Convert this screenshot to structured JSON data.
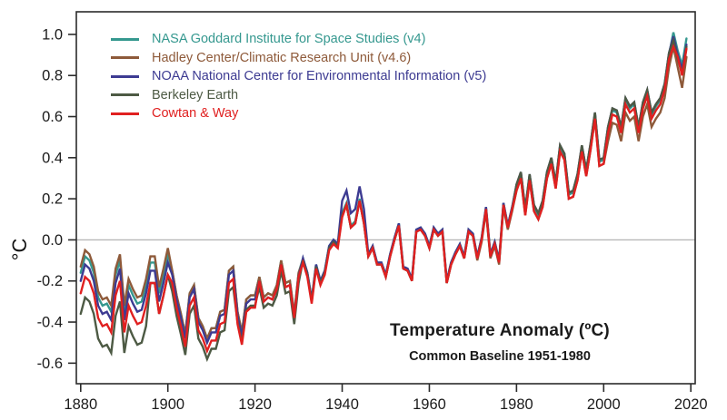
{
  "chart_data": {
    "type": "line",
    "title": "Temperature Anomaly (ºC)",
    "subtitle": "Common Baseline 1951-1980",
    "ylabel": "°C",
    "xlabel": "",
    "x_start_year": 1880,
    "x_end_year": 2019,
    "xlim": [
      1879,
      2021
    ],
    "ylim": [
      -0.7,
      1.11
    ],
    "xticks": [
      1880,
      1900,
      1920,
      1940,
      1960,
      1980,
      2000,
      2020
    ],
    "yticks": [
      -0.6,
      -0.4,
      -0.2,
      0.0,
      0.2,
      0.4,
      0.6,
      0.8,
      1.0
    ],
    "grid": false,
    "zero_line": true,
    "zero_line_color": "#b8b8b8",
    "frame_color": "#2b2b2b",
    "legend_position": "top-left",
    "series": [
      {
        "key": "nasa",
        "name": "NASA Goddard Institute for Space Studies (v4)",
        "color": "#35988f",
        "values": [
          -0.16,
          -0.08,
          -0.1,
          -0.16,
          -0.28,
          -0.32,
          -0.31,
          -0.35,
          -0.17,
          -0.1,
          -0.35,
          -0.22,
          -0.27,
          -0.31,
          -0.3,
          -0.22,
          -0.11,
          -0.11,
          -0.26,
          -0.17,
          -0.07,
          -0.15,
          -0.27,
          -0.36,
          -0.46,
          -0.26,
          -0.22,
          -0.38,
          -0.42,
          -0.48,
          -0.43,
          -0.43,
          -0.35,
          -0.34,
          -0.15,
          -0.13,
          -0.35,
          -0.45,
          -0.29,
          -0.27,
          -0.27,
          -0.18,
          -0.28,
          -0.26,
          -0.27,
          -0.22,
          -0.1,
          -0.21,
          -0.2,
          -0.36,
          -0.16,
          -0.09,
          -0.16,
          -0.29,
          -0.12,
          -0.2,
          -0.15,
          -0.03,
          0.0,
          -0.02,
          0.13,
          0.18,
          0.07,
          0.09,
          0.2,
          0.09,
          -0.07,
          -0.03,
          -0.11,
          -0.11,
          -0.17,
          -0.07,
          0.01,
          0.08,
          -0.13,
          -0.14,
          -0.19,
          0.05,
          0.06,
          0.03,
          -0.03,
          0.06,
          0.03,
          0.05,
          -0.2,
          -0.11,
          -0.06,
          -0.02,
          -0.08,
          0.05,
          0.03,
          -0.08,
          0.01,
          0.16,
          -0.07,
          -0.01,
          -0.1,
          0.18,
          0.07,
          0.16,
          0.26,
          0.32,
          0.14,
          0.31,
          0.16,
          0.12,
          0.18,
          0.32,
          0.39,
          0.27,
          0.45,
          0.41,
          0.22,
          0.23,
          0.31,
          0.45,
          0.33,
          0.46,
          0.61,
          0.38,
          0.39,
          0.54,
          0.63,
          0.62,
          0.54,
          0.68,
          0.64,
          0.66,
          0.54,
          0.66,
          0.72,
          0.61,
          0.65,
          0.68,
          0.75,
          0.9,
          1.01,
          0.92,
          0.85,
          0.98
        ]
      },
      {
        "key": "hadley",
        "name": "Hadley Center/Climatic Research Unit (v4.6)",
        "color": "#8e5a3a",
        "values": [
          -0.13,
          -0.05,
          -0.07,
          -0.13,
          -0.25,
          -0.29,
          -0.28,
          -0.32,
          -0.14,
          -0.07,
          -0.32,
          -0.19,
          -0.24,
          -0.28,
          -0.27,
          -0.19,
          -0.08,
          -0.08,
          -0.23,
          -0.14,
          -0.04,
          -0.15,
          -0.27,
          -0.36,
          -0.46,
          -0.26,
          -0.22,
          -0.38,
          -0.42,
          -0.48,
          -0.43,
          -0.43,
          -0.35,
          -0.34,
          -0.15,
          -0.13,
          -0.35,
          -0.45,
          -0.29,
          -0.27,
          -0.27,
          -0.18,
          -0.28,
          -0.26,
          -0.27,
          -0.22,
          -0.1,
          -0.21,
          -0.2,
          -0.36,
          -0.16,
          -0.1,
          -0.17,
          -0.3,
          -0.13,
          -0.21,
          -0.16,
          -0.04,
          -0.01,
          -0.03,
          0.12,
          0.17,
          0.06,
          0.08,
          0.19,
          0.08,
          -0.08,
          -0.04,
          -0.12,
          -0.12,
          -0.18,
          -0.08,
          0.0,
          0.07,
          -0.14,
          -0.15,
          -0.2,
          0.04,
          0.05,
          0.02,
          -0.04,
          0.05,
          0.02,
          0.04,
          -0.21,
          -0.12,
          -0.07,
          -0.03,
          -0.09,
          0.04,
          0.02,
          -0.1,
          -0.01,
          0.14,
          -0.09,
          -0.03,
          -0.12,
          0.16,
          0.05,
          0.14,
          0.24,
          0.3,
          0.12,
          0.29,
          0.14,
          0.1,
          0.16,
          0.3,
          0.37,
          0.25,
          0.43,
          0.39,
          0.2,
          0.21,
          0.29,
          0.43,
          0.31,
          0.44,
          0.59,
          0.36,
          0.37,
          0.48,
          0.57,
          0.56,
          0.48,
          0.62,
          0.58,
          0.6,
          0.48,
          0.6,
          0.66,
          0.55,
          0.59,
          0.62,
          0.69,
          0.84,
          0.94,
          0.84,
          0.74,
          0.89
        ]
      },
      {
        "key": "noaa",
        "name": "NOAA National Center for Environmental Information (v5)",
        "color": "#3d3b92",
        "values": [
          -0.2,
          -0.12,
          -0.14,
          -0.2,
          -0.32,
          -0.36,
          -0.35,
          -0.39,
          -0.21,
          -0.14,
          -0.39,
          -0.26,
          -0.31,
          -0.35,
          -0.34,
          -0.26,
          -0.15,
          -0.15,
          -0.3,
          -0.21,
          -0.11,
          -0.17,
          -0.29,
          -0.38,
          -0.48,
          -0.28,
          -0.24,
          -0.4,
          -0.44,
          -0.5,
          -0.45,
          -0.45,
          -0.37,
          -0.36,
          -0.17,
          -0.15,
          -0.37,
          -0.47,
          -0.31,
          -0.29,
          -0.29,
          -0.2,
          -0.3,
          -0.28,
          -0.29,
          -0.24,
          -0.12,
          -0.23,
          -0.22,
          -0.38,
          -0.18,
          -0.09,
          -0.16,
          -0.29,
          -0.12,
          -0.2,
          -0.15,
          -0.03,
          0.0,
          -0.02,
          0.19,
          0.24,
          0.13,
          0.15,
          0.26,
          0.15,
          -0.07,
          -0.03,
          -0.11,
          -0.11,
          -0.17,
          -0.07,
          0.01,
          0.08,
          -0.13,
          -0.14,
          -0.19,
          0.05,
          0.06,
          0.03,
          -0.03,
          0.06,
          0.03,
          0.05,
          -0.2,
          -0.11,
          -0.06,
          -0.02,
          -0.08,
          0.05,
          0.03,
          -0.08,
          0.01,
          0.16,
          -0.07,
          -0.01,
          -0.1,
          0.18,
          0.07,
          0.16,
          0.27,
          0.33,
          0.15,
          0.32,
          0.17,
          0.13,
          0.19,
          0.33,
          0.4,
          0.28,
          0.46,
          0.42,
          0.23,
          0.24,
          0.32,
          0.46,
          0.34,
          0.47,
          0.62,
          0.39,
          0.4,
          0.55,
          0.64,
          0.63,
          0.55,
          0.69,
          0.65,
          0.67,
          0.55,
          0.67,
          0.73,
          0.62,
          0.66,
          0.69,
          0.76,
          0.91,
          0.99,
          0.9,
          0.83,
          0.95
        ]
      },
      {
        "key": "berkeley",
        "name": "Berkeley Earth",
        "color": "#4d5a44",
        "values": [
          -0.36,
          -0.28,
          -0.3,
          -0.36,
          -0.48,
          -0.52,
          -0.51,
          -0.55,
          -0.37,
          -0.3,
          -0.55,
          -0.42,
          -0.47,
          -0.51,
          -0.5,
          -0.42,
          -0.21,
          -0.21,
          -0.36,
          -0.27,
          -0.17,
          -0.25,
          -0.37,
          -0.46,
          -0.56,
          -0.36,
          -0.32,
          -0.48,
          -0.52,
          -0.58,
          -0.53,
          -0.53,
          -0.45,
          -0.44,
          -0.25,
          -0.23,
          -0.4,
          -0.5,
          -0.34,
          -0.32,
          -0.32,
          -0.23,
          -0.33,
          -0.31,
          -0.32,
          -0.27,
          -0.15,
          -0.26,
          -0.25,
          -0.41,
          -0.21,
          -0.1,
          -0.17,
          -0.3,
          -0.13,
          -0.21,
          -0.16,
          -0.04,
          -0.01,
          -0.03,
          0.12,
          0.17,
          0.06,
          0.08,
          0.19,
          0.08,
          -0.08,
          -0.04,
          -0.12,
          -0.12,
          -0.18,
          -0.08,
          0.0,
          0.07,
          -0.14,
          -0.15,
          -0.2,
          0.04,
          0.05,
          0.02,
          -0.04,
          0.05,
          0.02,
          0.04,
          -0.21,
          -0.12,
          -0.07,
          -0.03,
          -0.09,
          0.04,
          0.02,
          -0.09,
          0.0,
          0.15,
          -0.08,
          -0.02,
          -0.11,
          0.17,
          0.06,
          0.15,
          0.27,
          0.33,
          0.15,
          0.32,
          0.17,
          0.13,
          0.19,
          0.33,
          0.4,
          0.28,
          0.46,
          0.42,
          0.23,
          0.24,
          0.32,
          0.46,
          0.34,
          0.47,
          0.62,
          0.39,
          0.4,
          0.55,
          0.64,
          0.63,
          0.55,
          0.69,
          0.65,
          0.67,
          0.55,
          0.67,
          0.73,
          0.62,
          0.66,
          0.69,
          0.76,
          0.91,
          0.97,
          0.88,
          0.81,
          0.94
        ]
      },
      {
        "key": "cowtan",
        "name": "Cowtan & Way",
        "color": "#e02020",
        "values": [
          -0.26,
          -0.18,
          -0.2,
          -0.26,
          -0.38,
          -0.42,
          -0.41,
          -0.45,
          -0.27,
          -0.2,
          -0.45,
          -0.32,
          -0.37,
          -0.41,
          -0.4,
          -0.32,
          -0.21,
          -0.21,
          -0.36,
          -0.27,
          -0.17,
          -0.21,
          -0.33,
          -0.42,
          -0.52,
          -0.32,
          -0.28,
          -0.44,
          -0.48,
          -0.54,
          -0.49,
          -0.49,
          -0.41,
          -0.4,
          -0.21,
          -0.19,
          -0.41,
          -0.51,
          -0.35,
          -0.33,
          -0.33,
          -0.2,
          -0.3,
          -0.28,
          -0.29,
          -0.24,
          -0.12,
          -0.23,
          -0.22,
          -0.38,
          -0.18,
          -0.11,
          -0.18,
          -0.31,
          -0.14,
          -0.22,
          -0.17,
          -0.05,
          -0.02,
          -0.04,
          0.11,
          0.17,
          0.06,
          0.08,
          0.19,
          0.08,
          -0.08,
          -0.04,
          -0.12,
          -0.12,
          -0.18,
          -0.08,
          0.0,
          0.07,
          -0.14,
          -0.15,
          -0.2,
          0.04,
          0.05,
          0.02,
          -0.04,
          0.05,
          0.02,
          0.04,
          -0.21,
          -0.12,
          -0.07,
          -0.03,
          -0.09,
          0.04,
          0.02,
          -0.09,
          0.0,
          0.15,
          -0.08,
          -0.02,
          -0.11,
          0.17,
          0.06,
          0.15,
          0.24,
          0.3,
          0.12,
          0.29,
          0.14,
          0.1,
          0.16,
          0.3,
          0.37,
          0.25,
          0.43,
          0.39,
          0.2,
          0.21,
          0.29,
          0.43,
          0.31,
          0.44,
          0.59,
          0.36,
          0.37,
          0.52,
          0.61,
          0.6,
          0.52,
          0.66,
          0.62,
          0.64,
          0.52,
          0.64,
          0.7,
          0.59,
          0.63,
          0.66,
          0.73,
          0.88,
          0.94,
          0.89,
          0.8,
          0.93
        ]
      }
    ]
  }
}
